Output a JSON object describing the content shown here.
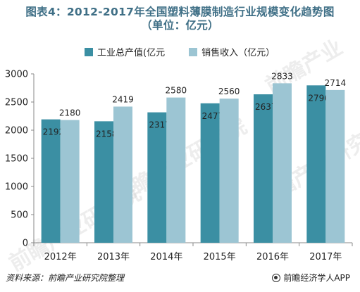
{
  "title_line1": "图表4：2012-2017年全国塑料薄膜制造行业规模变化趋势图",
  "title_line2": "（单位：亿元）",
  "footer": {
    "source": "资料来源：前瞻产业研究院整理",
    "brand": "前瞻经济学人APP"
  },
  "watermarks": [
    "前瞻产业",
    "前瞻产业研究院",
    "前瞻产业研究院",
    "前瞻产业研究院"
  ],
  "colors": {
    "series1": "#3b8fa3",
    "series2": "#9cc5d3",
    "axis": "#888888",
    "title": "#3f6f86"
  },
  "chart_data": {
    "type": "bar",
    "categories": [
      "2012年",
      "2013年",
      "2014年",
      "2015年",
      "2016年",
      "2017年"
    ],
    "series": [
      {
        "name": "工业总产值(亿元",
        "values": [
          2192,
          2158,
          2317,
          2477,
          2637,
          2796
        ]
      },
      {
        "name": "销售收入（亿元）",
        "values": [
          2180,
          2419,
          2580,
          2560,
          2833,
          2714
        ]
      }
    ],
    "yticks": [
      0,
      500,
      1000,
      1500,
      2000,
      2500,
      3000
    ],
    "ylim": [
      0,
      3000
    ],
    "grid": false,
    "legend": "top"
  }
}
